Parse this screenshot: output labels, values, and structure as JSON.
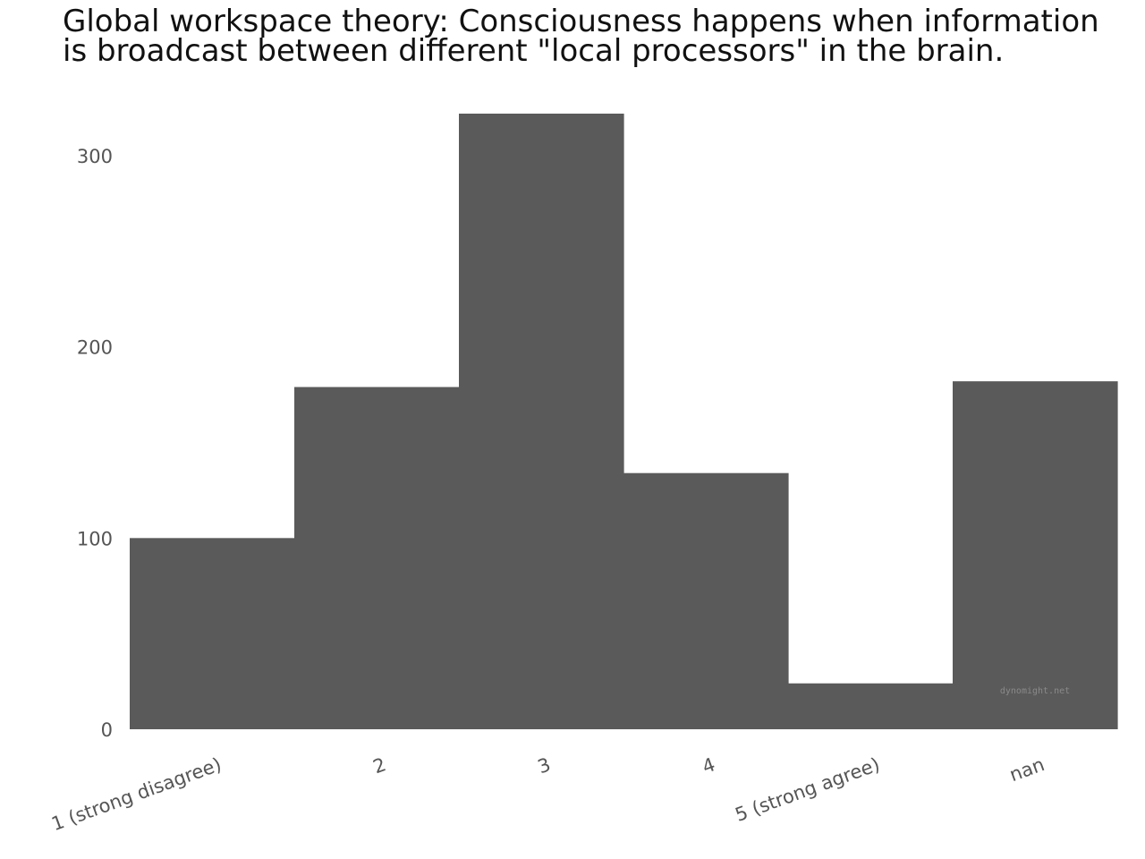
{
  "chart_data": {
    "type": "bar",
    "title": "Global workspace theory: Consciousness happens when information is broadcast between different \"local processors\" in the brain.",
    "categories": [
      "1 (strong disagree)",
      "2",
      "3",
      "4",
      "5 (strong agree)",
      "nan"
    ],
    "values": [
      100,
      179,
      322,
      134,
      24,
      182
    ],
    "yticks": [
      0,
      100,
      200,
      300
    ],
    "ylim": [
      0,
      322
    ],
    "xlabel": "",
    "ylabel": "",
    "grid": false,
    "bar_color": "#5a5a5a",
    "watermark": "dynomight.net"
  }
}
